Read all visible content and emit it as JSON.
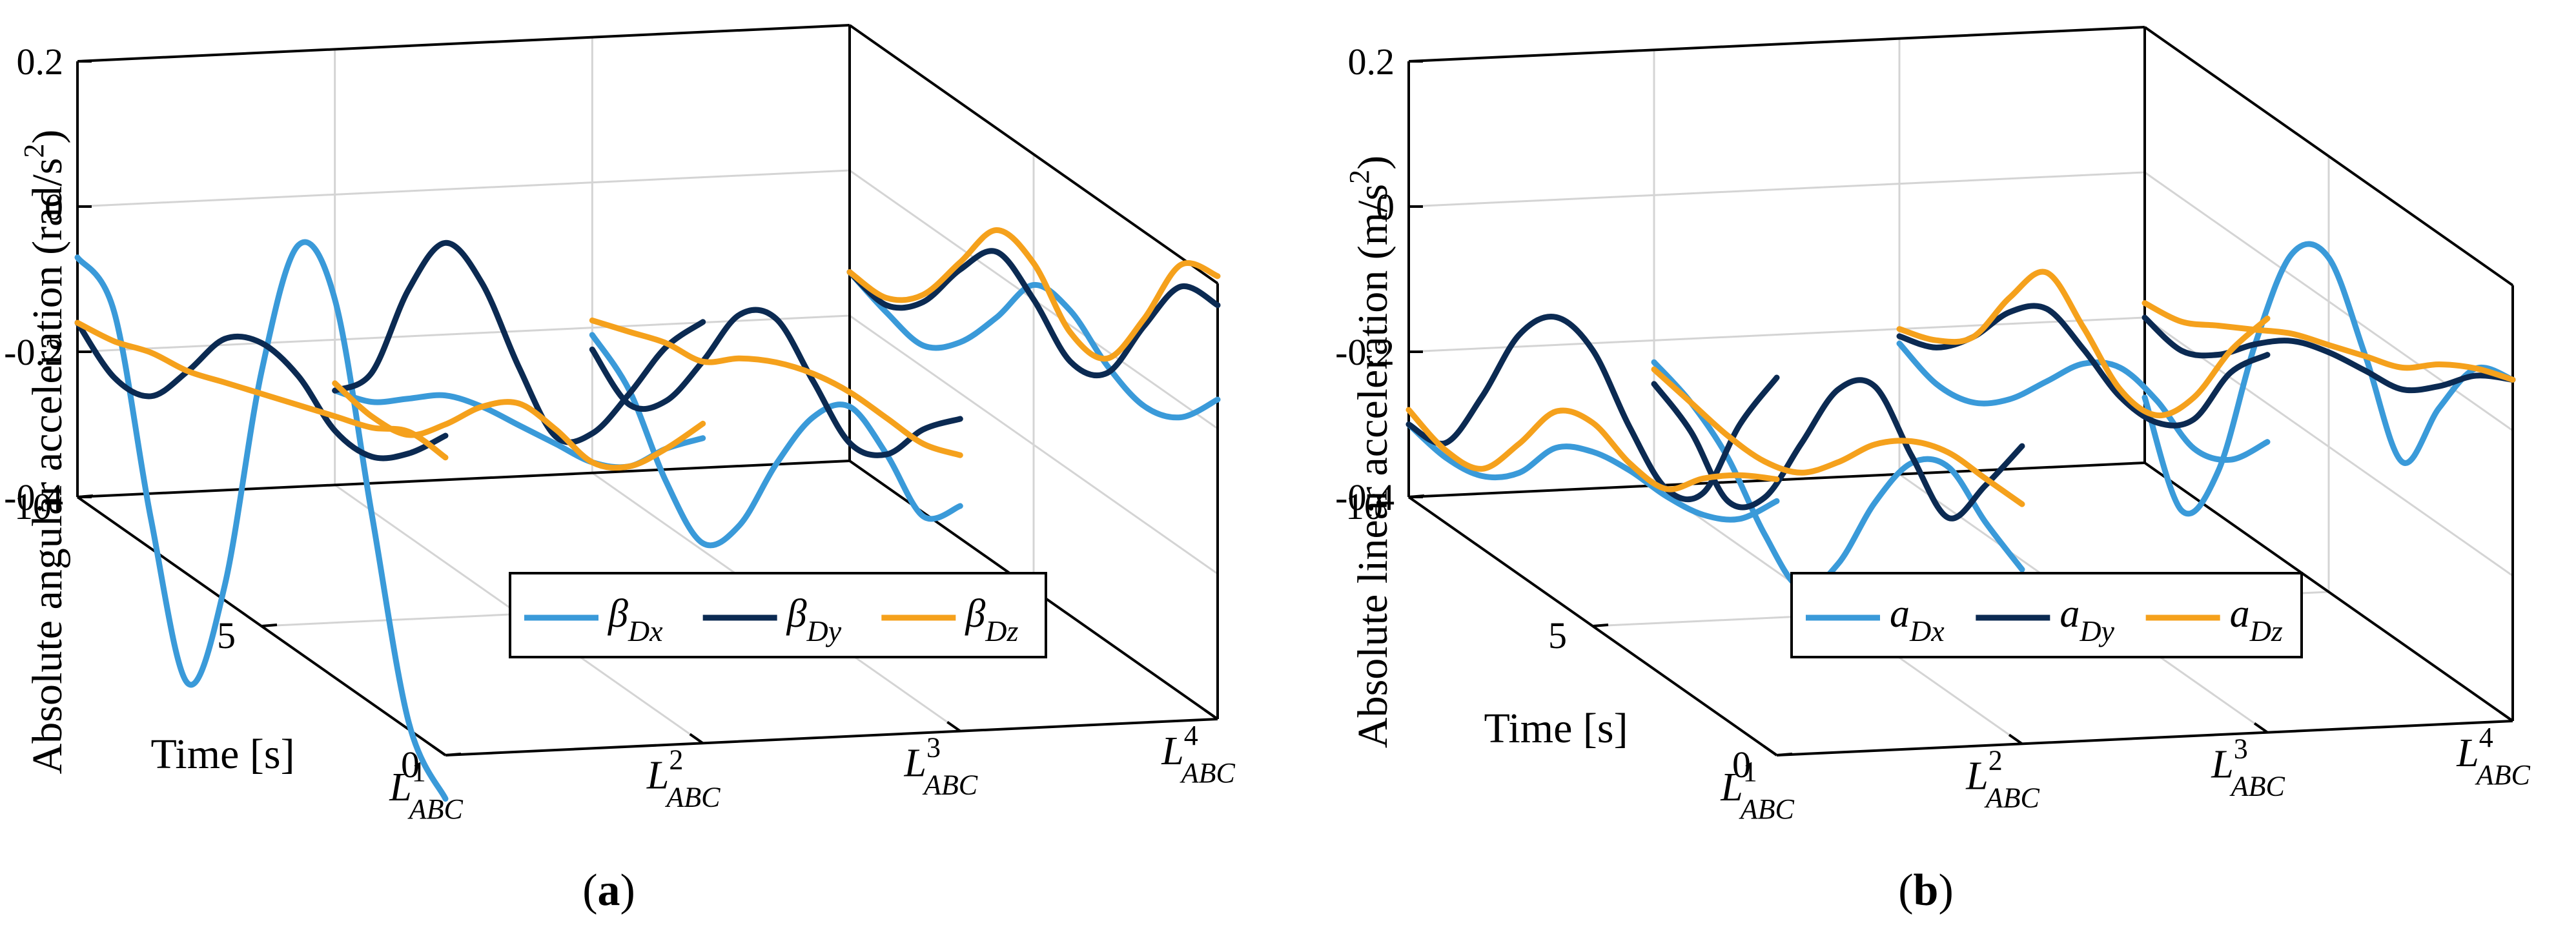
{
  "chart_data": [
    {
      "type": "line",
      "panel_label": "(a)",
      "ylabel": "Absolute angular acceleration (rad/s²)",
      "ylabel_parts": {
        "main": "Absolute angular acceleration (rad/s",
        "sup": "2",
        "end": ")"
      },
      "tlabel": "Time [s]",
      "y_ticks": [
        "0.2",
        "0",
        "-0.2",
        "-0.4"
      ],
      "t_ticks": [
        "10",
        "5",
        "0"
      ],
      "ylim": [
        -0.4,
        0.2
      ],
      "tlim": [
        0,
        10
      ],
      "x_categories": [
        {
          "base": "L",
          "sup": "1",
          "sub": "ABC"
        },
        {
          "base": "L",
          "sup": "2",
          "sub": "ABC"
        },
        {
          "base": "L",
          "sup": "3",
          "sub": "ABC"
        },
        {
          "base": "L",
          "sup": "4",
          "sub": "ABC"
        }
      ],
      "t": [
        0,
        1,
        2,
        3,
        4,
        5,
        6,
        7,
        8,
        9,
        10
      ],
      "series": [
        {
          "name": "βDx",
          "base": "β",
          "sub": "Dx",
          "color": "#3a9ad9",
          "values": [
            [
              -0.46,
              -0.39,
              -0.14,
              0.12,
              0.16,
              -0.05,
              -0.38,
              -0.55,
              -0.36,
              -0.11,
              -0.07
            ],
            [
              0.02,
              -0.03,
              -0.09,
              -0.12,
              -0.13,
              -0.14,
              -0.15,
              -0.17,
              -0.21,
              -0.25,
              -0.27
            ],
            [
              -0.09,
              -0.14,
              -0.09,
              -0.06,
              -0.11,
              -0.21,
              -0.33,
              -0.39,
              -0.34,
              -0.25,
              -0.21
            ],
            [
              0.04,
              -0.02,
              -0.04,
              -0.02,
              0.02,
              0.02,
              -0.06,
              -0.13,
              -0.17,
              -0.16,
              -0.14
            ]
          ]
        },
        {
          "name": "βDy",
          "base": "β",
          "sub": "Dy",
          "color": "#0b2a52",
          "values": [
            [
              0.04,
              -0.02,
              -0.06,
              -0.06,
              -0.02,
              -0.01,
              -0.04,
              -0.12,
              -0.19,
              -0.2,
              -0.16
            ],
            [
              0.18,
              0.11,
              0.01,
              -0.08,
              -0.12,
              -0.06,
              0.02,
              0.04,
              -0.06,
              -0.21,
              -0.27
            ],
            [
              0.03,
              -0.02,
              -0.09,
              -0.11,
              -0.06,
              -0.01,
              -0.04,
              -0.14,
              -0.23,
              -0.27,
              -0.23
            ],
            [
              0.17,
              0.16,
              0.07,
              -0.03,
              -0.05,
              0.0,
              0.03,
              -0.03,
              -0.11,
              -0.15,
              -0.14
            ]
          ]
        },
        {
          "name": "βDz",
          "base": "β",
          "sub": "Dz",
          "color": "#f5a11c",
          "values": [
            [
              0.01,
              0.01,
              -0.02,
              -0.04,
              -0.06,
              -0.08,
              -0.1,
              -0.12,
              -0.13,
              -0.15,
              -0.16
            ],
            [
              0.04,
              -0.03,
              -0.09,
              -0.12,
              -0.11,
              -0.11,
              -0.15,
              -0.21,
              -0.26,
              -0.27,
              -0.26
            ],
            [
              -0.02,
              -0.04,
              -0.04,
              -0.04,
              -0.05,
              -0.07,
              -0.1,
              -0.14,
              -0.15,
              -0.17,
              -0.19
            ],
            [
              0.21,
              0.19,
              0.08,
              -0.01,
              -0.01,
              0.05,
              0.06,
              -0.02,
              -0.1,
              -0.14,
              -0.14
            ]
          ]
        }
      ]
    },
    {
      "type": "line",
      "panel_label": "(b)",
      "ylabel": "Absolute linear acceleration (m/s²)",
      "ylabel_parts": {
        "main": "Absolute linear acceleration (m/s",
        "sup": "2",
        "end": ")"
      },
      "tlabel": "Time [s]",
      "y_ticks": [
        "0.2",
        "0",
        "-0.2",
        "-0.4"
      ],
      "t_ticks": [
        "10",
        "5",
        "0"
      ],
      "ylim": [
        -0.4,
        0.2
      ],
      "tlim": [
        0,
        10
      ],
      "x_categories": [
        {
          "base": "L",
          "sup": "1",
          "sub": "ABC"
        },
        {
          "base": "L",
          "sup": "2",
          "sub": "ABC"
        },
        {
          "base": "L",
          "sup": "3",
          "sub": "ABC"
        },
        {
          "base": "L",
          "sup": "4",
          "sub": "ABC"
        }
      ],
      "t": [
        0,
        1,
        2,
        3,
        4,
        5,
        6,
        7,
        8,
        9,
        10
      ],
      "series": [
        {
          "name": "aDx",
          "base": "a",
          "sub": "Dx",
          "color": "#3a9ad9",
          "values": [
            [
              -0.05,
              -0.11,
              -0.14,
              -0.15,
              -0.15,
              -0.16,
              -0.19,
              -0.26,
              -0.3,
              -0.31,
              -0.3
            ],
            [
              -0.16,
              -0.13,
              -0.09,
              -0.12,
              -0.21,
              -0.33,
              -0.4,
              -0.36,
              -0.29,
              -0.25,
              -0.23
            ],
            [
              0.0,
              -0.06,
              -0.08,
              -0.05,
              -0.04,
              -0.07,
              -0.13,
              -0.19,
              -0.23,
              -0.24,
              -0.22
            ],
            [
              0.07,
              0.05,
              -0.04,
              -0.15,
              -0.04,
              0.06,
              0.03,
              -0.13,
              -0.34,
              -0.43,
              -0.31
            ]
          ]
        },
        {
          "name": "aDy",
          "base": "a",
          "sub": "Dy",
          "color": "#0b2a52",
          "values": [
            [
              0.12,
              0.02,
              -0.11,
              -0.14,
              -0.09,
              -0.02,
              -0.01,
              -0.07,
              -0.19,
              -0.29,
              -0.3
            ],
            [
              0.01,
              -0.08,
              -0.16,
              -0.11,
              -0.05,
              -0.09,
              -0.2,
              -0.31,
              -0.35,
              -0.29,
              -0.26
            ],
            [
              0.12,
              0.06,
              -0.04,
              -0.08,
              -0.08,
              -0.05,
              -0.03,
              -0.07,
              -0.14,
              -0.19,
              -0.21
            ],
            [
              0.07,
              0.04,
              -0.01,
              -0.05,
              -0.06,
              -0.07,
              -0.09,
              -0.13,
              -0.18,
              -0.21,
              -0.2
            ]
          ]
        },
        {
          "name": "aDz",
          "base": "a",
          "sub": "Dz",
          "color": "#f5a11c",
          "values": [
            [
              -0.02,
              -0.05,
              -0.09,
              -0.14,
              -0.14,
              -0.12,
              -0.14,
              -0.22,
              -0.29,
              -0.3,
              -0.28
            ],
            [
              -0.07,
              -0.07,
              -0.07,
              -0.09,
              -0.13,
              -0.19,
              -0.24,
              -0.26,
              -0.26,
              -0.25,
              -0.24
            ],
            [
              0.17,
              0.09,
              -0.01,
              -0.07,
              -0.07,
              -0.02,
              0.02,
              -0.05,
              -0.14,
              -0.18,
              -0.2
            ],
            [
              0.07,
              0.05,
              0.02,
              -0.02,
              -0.04,
              -0.06,
              -0.08,
              -0.11,
              -0.14,
              -0.17,
              -0.18
            ]
          ]
        }
      ]
    }
  ]
}
